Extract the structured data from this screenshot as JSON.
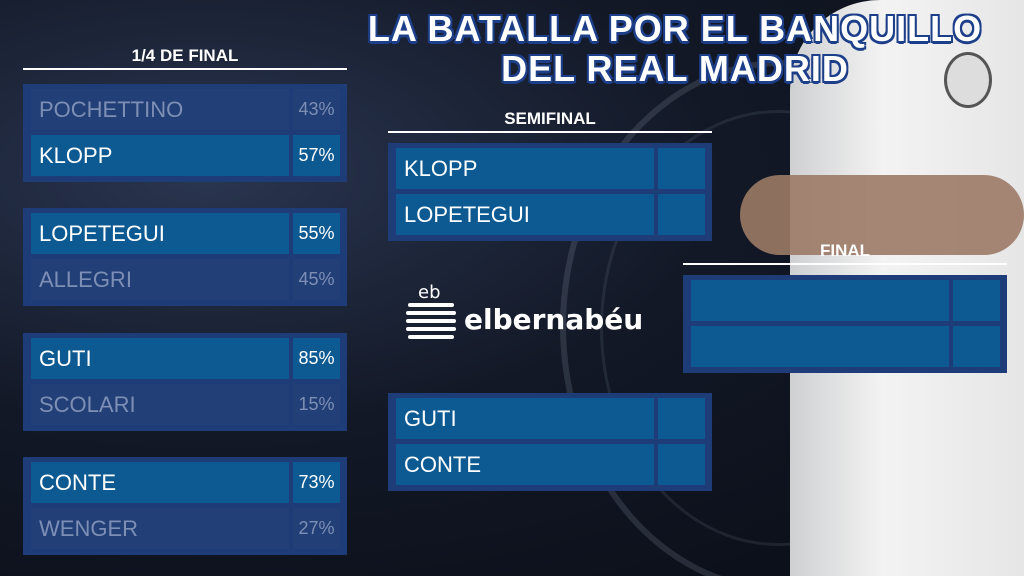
{
  "title": {
    "line1": "LA BATALLA POR EL BANQUILLO",
    "line2": "DEL REAL MADRID"
  },
  "rounds": {
    "quarter": {
      "label": "1/4 DE FINAL",
      "matches": [
        [
          {
            "name": "POCHETTINO",
            "pct": "43%",
            "winner": false
          },
          {
            "name": "KLOPP",
            "pct": "57%",
            "winner": true
          }
        ],
        [
          {
            "name": "LOPETEGUI",
            "pct": "55%",
            "winner": true
          },
          {
            "name": "ALLEGRI",
            "pct": "45%",
            "winner": false
          }
        ],
        [
          {
            "name": "GUTI",
            "pct": "85%",
            "winner": true
          },
          {
            "name": "SCOLARI",
            "pct": "15%",
            "winner": false
          }
        ],
        [
          {
            "name": "CONTE",
            "pct": "73%",
            "winner": true
          },
          {
            "name": "WENGER",
            "pct": "27%",
            "winner": false
          }
        ]
      ]
    },
    "semi": {
      "label": "SEMIFINAL",
      "matches": [
        [
          {
            "name": "KLOPP",
            "pct": ""
          },
          {
            "name": "LOPETEGUI",
            "pct": ""
          }
        ],
        [
          {
            "name": "GUTI",
            "pct": ""
          },
          {
            "name": "CONTE",
            "pct": ""
          }
        ]
      ]
    },
    "final": {
      "label": "FINAL",
      "matches": [
        [
          {
            "name": "",
            "pct": ""
          },
          {
            "name": "",
            "pct": ""
          }
        ]
      ]
    }
  },
  "logo": {
    "mark": "eb",
    "text": "elbernabéu"
  },
  "colors": {
    "box": "#1e3c78",
    "winner_row": "#0d5a92",
    "loser_text": "#7e8fb5",
    "title_outline": "#1d3f8a"
  }
}
